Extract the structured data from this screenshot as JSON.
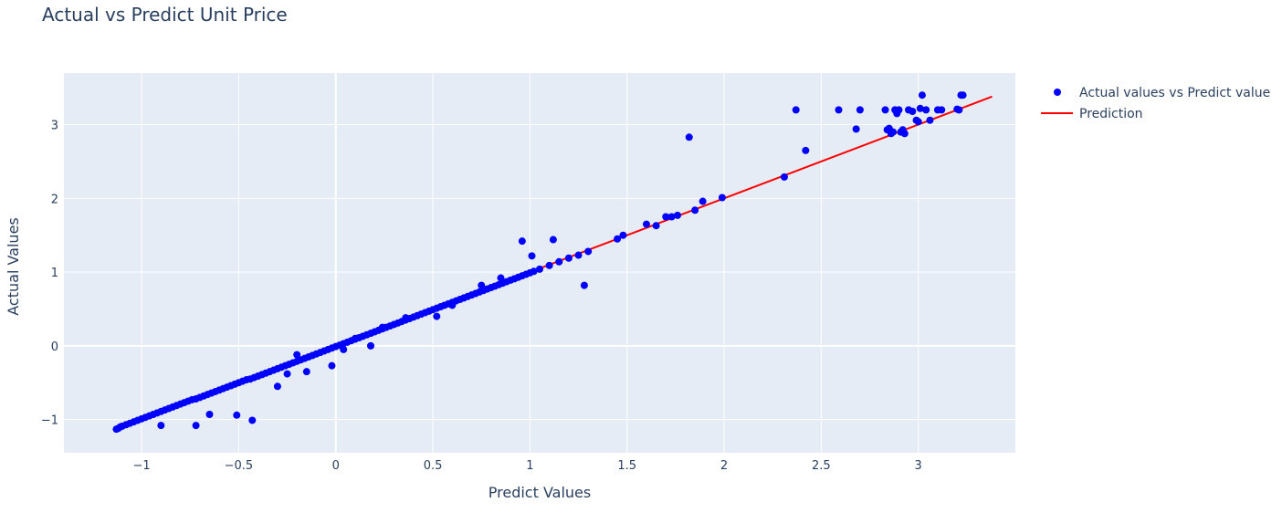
{
  "chart_data": {
    "type": "scatter",
    "title": "Actual vs Predict Unit Price",
    "xlabel": "Predict Values",
    "ylabel": "Actual Values",
    "xlim": [
      -1.4,
      3.5
    ],
    "ylim": [
      -1.45,
      3.7
    ],
    "xticks": [
      -1,
      -0.5,
      0,
      0.5,
      1,
      1.5,
      2,
      2.5,
      3
    ],
    "xtick_labels": [
      "−1",
      "−0.5",
      "0",
      "0.5",
      "1",
      "1.5",
      "2",
      "2.5",
      "3"
    ],
    "yticks": [
      -1,
      0,
      1,
      2,
      3
    ],
    "ytick_labels": [
      "−1",
      "0",
      "1",
      "2",
      "3"
    ],
    "grid": true,
    "legend_position": "top-right",
    "series": [
      {
        "name": "Actual values vs Predict value",
        "mode": "markers",
        "color": "#0000ff",
        "x": [
          -1.13,
          -1.12,
          -1.11,
          -1.1,
          -1.08,
          -1.06,
          -1.04,
          -1.02,
          -1.0,
          -0.98,
          -0.96,
          -0.94,
          -0.92,
          -0.9,
          -0.88,
          -0.86,
          -0.84,
          -0.82,
          -0.8,
          -0.78,
          -0.76,
          -0.74,
          -0.72,
          -0.7,
          -0.68,
          -0.66,
          -0.64,
          -0.62,
          -0.6,
          -0.58,
          -0.56,
          -0.54,
          -0.52,
          -0.5,
          -0.48,
          -0.46,
          -0.44,
          -0.42,
          -0.4,
          -0.38,
          -0.36,
          -0.34,
          -0.32,
          -0.3,
          -0.28,
          -0.26,
          -0.24,
          -0.22,
          -0.2,
          -0.18,
          -0.16,
          -0.14,
          -0.12,
          -0.1,
          -0.08,
          -0.06,
          -0.04,
          -0.02,
          0.0,
          0.02,
          0.04,
          0.06,
          0.08,
          0.1,
          0.12,
          0.14,
          0.16,
          0.18,
          0.2,
          0.22,
          0.24,
          0.26,
          0.28,
          0.3,
          0.32,
          0.34,
          0.36,
          0.38,
          0.4,
          0.42,
          0.44,
          0.46,
          0.48,
          0.5,
          0.52,
          0.54,
          0.56,
          0.58,
          0.6,
          0.62,
          0.64,
          0.66,
          0.68,
          0.7,
          0.72,
          0.74,
          0.76,
          0.78,
          0.8,
          0.82,
          0.84,
          0.86,
          0.88,
          0.9,
          0.92,
          0.94,
          0.96,
          0.98,
          1.0,
          1.02,
          1.05,
          1.1,
          1.15,
          1.2,
          1.25,
          1.3,
          1.45,
          1.48,
          1.6,
          1.65,
          1.7,
          1.73,
          1.76,
          1.85,
          1.89,
          1.99,
          2.31,
          -0.9,
          -0.72,
          -0.65,
          -0.51,
          -0.43,
          -0.3,
          -0.25,
          -0.2,
          -0.15,
          -0.02,
          0.04,
          0.1,
          0.18,
          0.24,
          0.36,
          0.52,
          0.6,
          0.75,
          0.85,
          0.96,
          1.01,
          1.12,
          1.28,
          1.82,
          2.37,
          2.42,
          2.59,
          2.68,
          2.7,
          2.83,
          2.84,
          2.85,
          2.86,
          2.87,
          2.88,
          2.89,
          2.9,
          2.91,
          2.92,
          2.93,
          2.95,
          2.97,
          2.99,
          3.0,
          3.01,
          3.02,
          3.04,
          3.06,
          3.1,
          3.12,
          3.2,
          3.21,
          3.22,
          3.23
        ],
        "y": [
          -1.13,
          -1.12,
          -1.1,
          -1.09,
          -1.07,
          -1.05,
          -1.03,
          -1.01,
          -0.99,
          -0.97,
          -0.95,
          -0.93,
          -0.91,
          -0.89,
          -0.87,
          -0.85,
          -0.83,
          -0.81,
          -0.79,
          -0.77,
          -0.75,
          -0.73,
          -0.72,
          -0.7,
          -0.68,
          -0.66,
          -0.64,
          -0.62,
          -0.6,
          -0.58,
          -0.56,
          -0.54,
          -0.52,
          -0.5,
          -0.48,
          -0.46,
          -0.45,
          -0.43,
          -0.41,
          -0.39,
          -0.37,
          -0.35,
          -0.33,
          -0.31,
          -0.29,
          -0.27,
          -0.25,
          -0.23,
          -0.21,
          -0.19,
          -0.17,
          -0.15,
          -0.13,
          -0.11,
          -0.09,
          -0.07,
          -0.05,
          -0.03,
          -0.01,
          0.01,
          0.03,
          0.05,
          0.07,
          0.09,
          0.11,
          0.13,
          0.15,
          0.17,
          0.19,
          0.21,
          0.23,
          0.25,
          0.27,
          0.29,
          0.31,
          0.33,
          0.35,
          0.37,
          0.39,
          0.41,
          0.43,
          0.45,
          0.47,
          0.49,
          0.51,
          0.53,
          0.55,
          0.57,
          0.59,
          0.61,
          0.63,
          0.65,
          0.67,
          0.69,
          0.71,
          0.73,
          0.75,
          0.77,
          0.79,
          0.81,
          0.83,
          0.85,
          0.87,
          0.89,
          0.91,
          0.93,
          0.95,
          0.97,
          0.99,
          1.01,
          1.04,
          1.09,
          1.14,
          1.19,
          1.23,
          1.28,
          1.45,
          1.5,
          1.65,
          1.63,
          1.75,
          1.75,
          1.77,
          1.84,
          1.96,
          2.01,
          2.29,
          -1.08,
          -1.08,
          -0.93,
          -0.94,
          -1.01,
          -0.55,
          -0.38,
          -0.12,
          -0.35,
          -0.27,
          -0.05,
          0.1,
          0.0,
          0.25,
          0.38,
          0.4,
          0.55,
          0.82,
          0.92,
          1.42,
          1.22,
          1.44,
          0.82,
          2.83,
          3.2,
          2.65,
          3.2,
          2.94,
          3.2,
          3.2,
          2.93,
          2.95,
          2.88,
          2.9,
          3.2,
          3.15,
          3.2,
          2.9,
          2.93,
          2.88,
          3.2,
          3.18,
          3.06,
          3.04,
          3.22,
          3.4,
          3.2,
          3.06,
          3.2,
          3.2,
          3.21,
          3.2,
          3.4,
          3.4
        ]
      },
      {
        "name": "Prediction",
        "mode": "lines",
        "color": "#ff0000",
        "x": [
          -1.13,
          3.38
        ],
        "y": [
          -1.13,
          3.38
        ]
      }
    ]
  }
}
